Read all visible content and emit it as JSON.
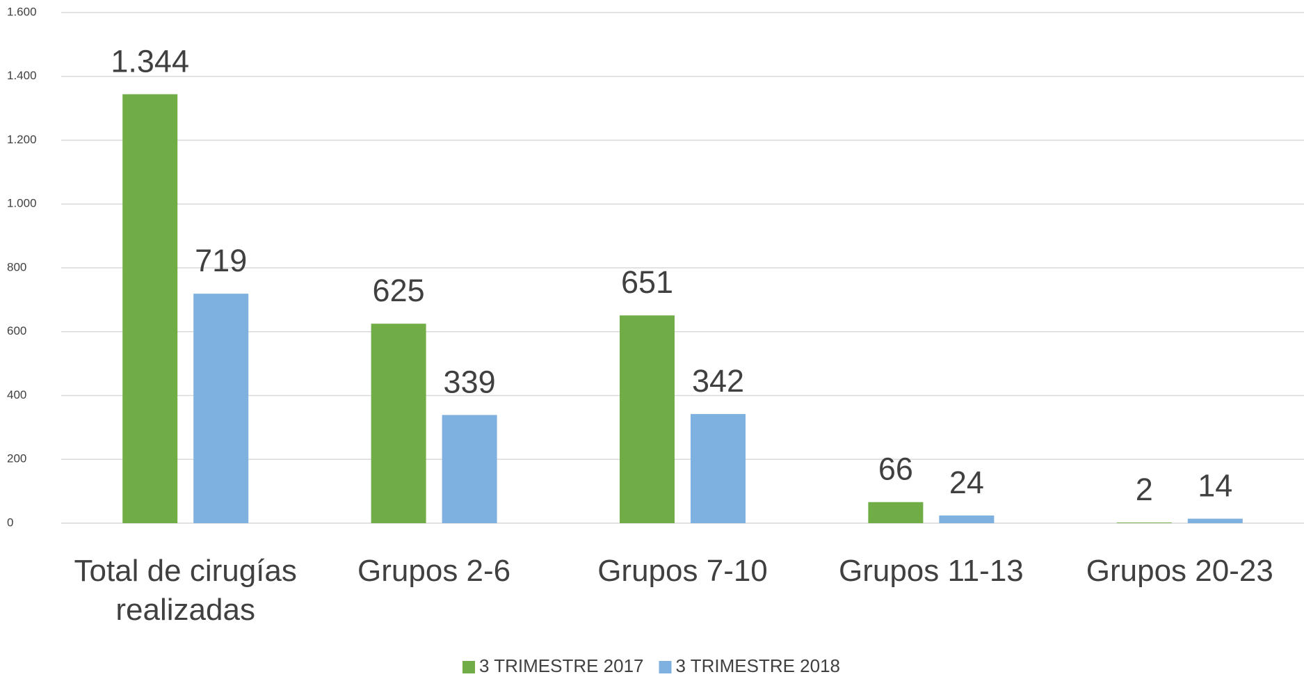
{
  "chart_data": {
    "type": "bar",
    "categories": [
      "Total de cirugías realizadas",
      "Grupos 2-6",
      "Grupos 7-10",
      "Grupos 11-13",
      "Grupos 20-23"
    ],
    "series": [
      {
        "name": "3 TRIMESTRE 2017",
        "color": "#70ad47",
        "values": [
          1344,
          625,
          651,
          66,
          2
        ],
        "value_labels": [
          "1.344",
          "625",
          "651",
          "66",
          "2"
        ]
      },
      {
        "name": "3 TRIMESTRE 2018",
        "color": "#7fb1e0",
        "values": [
          719,
          339,
          342,
          24,
          14
        ]
      }
    ],
    "ylim": [
      0,
      1600
    ],
    "yticks": [
      0,
      200,
      400,
      600,
      800,
      {
        "value": 1000,
        "label": "1.000"
      },
      {
        "value": 1200,
        "label": "1.200"
      },
      {
        "value": 1400,
        "label": "1.400"
      },
      {
        "value": 1600,
        "label": "1.600"
      }
    ],
    "grid": true,
    "legend": "bottom"
  }
}
